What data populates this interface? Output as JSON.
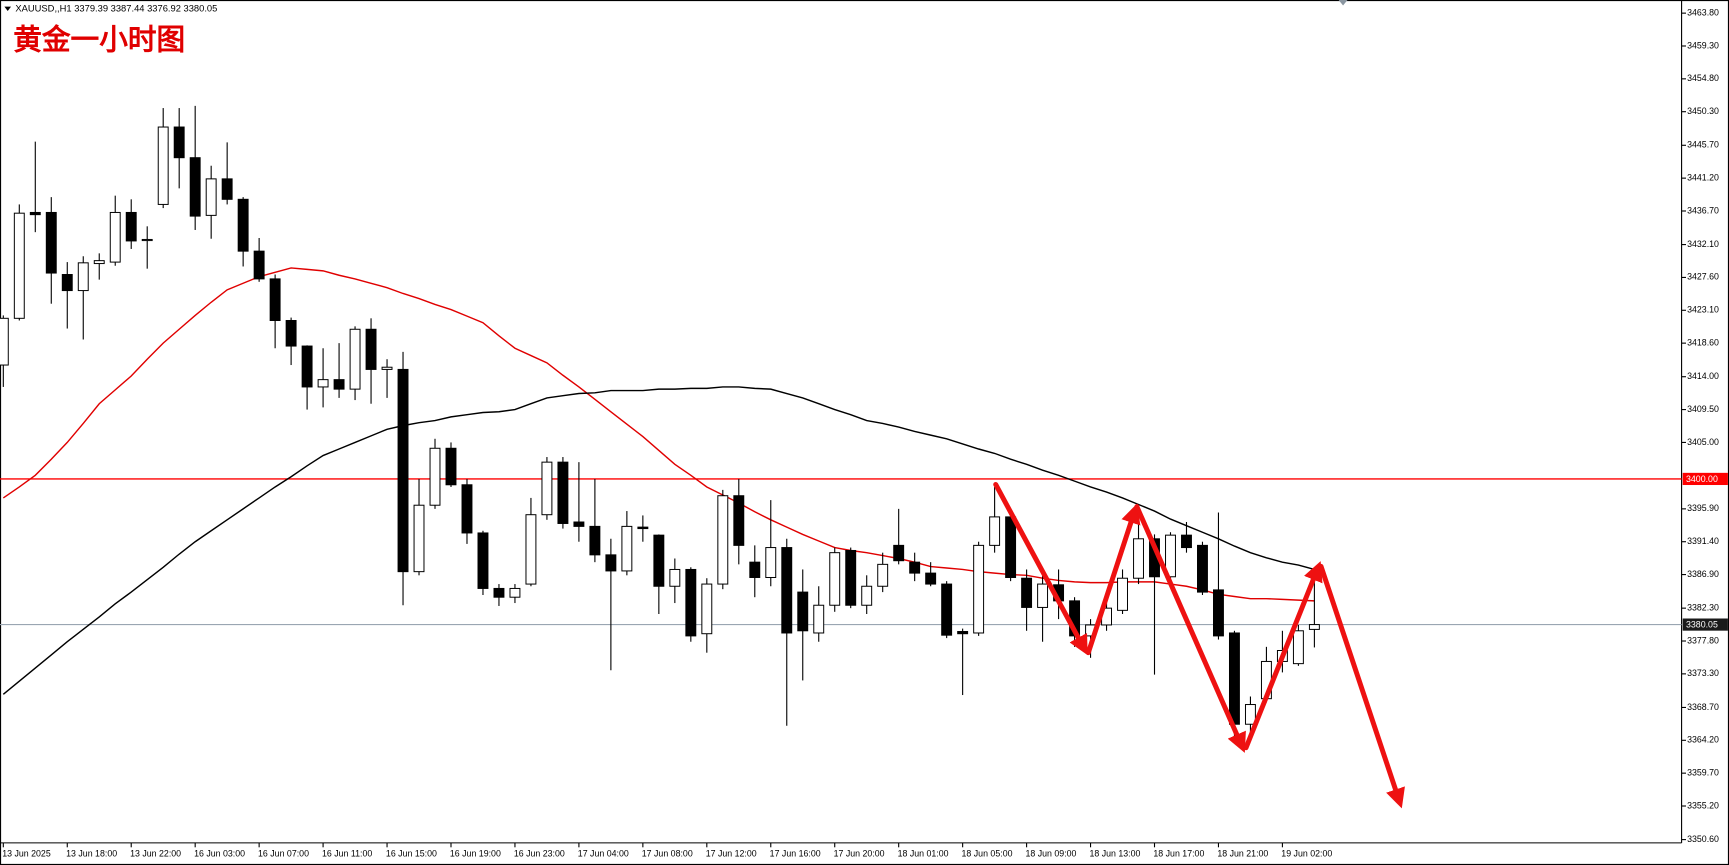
{
  "chart_data": {
    "type": "candlestick",
    "title": "黄金一小时图",
    "header": "XAUUSD,,H1  3379.39 3387.44 3376.92 3380.05",
    "categories": [
      "13 Jun 2025",
      null,
      null,
      null,
      "13 Jun 18:00",
      null,
      null,
      null,
      "13 Jun 22:00",
      null,
      null,
      null,
      "16 Jun 03:00",
      null,
      null,
      null,
      "16 Jun 07:00",
      null,
      null,
      null,
      "16 Jun 11:00",
      null,
      null,
      null,
      "16 Jun 15:00",
      null,
      null,
      null,
      "16 Jun 19:00",
      null,
      null,
      null,
      "16 Jun 23:00",
      null,
      null,
      null,
      "17 Jun 04:00",
      null,
      null,
      null,
      "17 Jun 08:00",
      null,
      null,
      null,
      "17 Jun 12:00",
      null,
      null,
      null,
      "17 Jun 16:00",
      null,
      null,
      null,
      "17 Jun 20:00",
      null,
      null,
      null,
      "18 Jun 01:00",
      null,
      null,
      null,
      "18 Jun 05:00",
      null,
      null,
      null,
      "18 Jun 09:00",
      null,
      null,
      null,
      "18 Jun 13:00",
      null,
      null,
      null,
      "18 Jun 17:00",
      null,
      null,
      null,
      "18 Jun 21:00",
      null,
      null,
      null,
      "19 Jun 02:00",
      null,
      null
    ],
    "open": [
      3415.6,
      3422.0,
      3436.5,
      3436.5,
      3428.0,
      3425.8,
      3429.5,
      3429.7,
      3436.5,
      3432.7,
      3437.6,
      3448.2,
      3444.0,
      3436.1,
      3441.1,
      3438.3,
      3431.2,
      3427.4,
      3421.7,
      3418.2,
      3412.6,
      3413.6,
      3412.3,
      3420.5,
      3415.0,
      3415.0,
      3387.3,
      3396.4,
      3404.2,
      3399.2,
      3392.6,
      3385.0,
      3383.8,
      3385.6,
      3395.1,
      3402.3,
      3394.1,
      3393.5,
      3389.6,
      3387.4,
      3393.4,
      3392.3,
      3385.3,
      3387.6,
      3378.8,
      3385.6,
      3397.7,
      3388.6,
      3386.5,
      3390.6,
      3384.5,
      3378.9,
      3382.7,
      3390.2,
      3382.7,
      3385.3,
      3390.9,
      3388.6,
      3387.1,
      3385.6,
      3379.1,
      3378.9,
      3390.9,
      3394.8,
      3386.4,
      3382.4,
      3385.5,
      3383.3,
      3378.5,
      3380.0,
      3382.0,
      3386.4,
      3391.8,
      3386.6,
      3392.3,
      3390.9,
      3384.8,
      3378.9,
      3366.4,
      3369.9,
      3375.0,
      3374.7,
      3379.39
    ],
    "high": [
      3422.4,
      3437.6,
      3446.2,
      3438.6,
      3429.7,
      3430.5,
      3430.9,
      3438.8,
      3438.3,
      3434.6,
      3450.8,
      3450.8,
      3451.1,
      3442.9,
      3446.1,
      3438.6,
      3433.0,
      3428.0,
      3422.1,
      3418.3,
      3417.9,
      3418.6,
      3420.9,
      3422.0,
      3416.4,
      3417.4,
      3400.0,
      3405.5,
      3405.0,
      3400.0,
      3392.9,
      3385.6,
      3385.6,
      3397.4,
      3403.0,
      3403.0,
      3402.3,
      3400.0,
      3391.8,
      3395.6,
      3395.0,
      3392.4,
      3389.1,
      3387.9,
      3386.4,
      3398.5,
      3400.0,
      3390.9,
      3397.1,
      3391.8,
      3387.6,
      3385.3,
      3390.6,
      3390.6,
      3386.8,
      3389.9,
      3395.9,
      3389.9,
      3388.6,
      3386.0,
      3379.5,
      3391.4,
      3398.9,
      3395.4,
      3387.6,
      3386.8,
      3387.6,
      3383.8,
      3380.8,
      3383.0,
      3387.6,
      3395.1,
      3392.4,
      3392.7,
      3394.1,
      3391.4,
      3395.4,
      3379.2,
      3370.2,
      3377.0,
      3379.2,
      3380.0,
      3387.44
    ],
    "low": [
      3412.6,
      3421.7,
      3433.8,
      3424.0,
      3420.6,
      3419.1,
      3427.3,
      3429.2,
      3431.5,
      3428.8,
      3437.1,
      3439.8,
      3434.1,
      3432.9,
      3437.6,
      3429.1,
      3427.0,
      3417.9,
      3415.6,
      3409.5,
      3409.8,
      3411.1,
      3410.8,
      3410.3,
      3411.1,
      3382.7,
      3386.8,
      3395.9,
      3398.9,
      3391.1,
      3384.1,
      3382.6,
      3383.0,
      3385.3,
      3394.4,
      3393.2,
      3391.4,
      3388.6,
      3373.8,
      3386.8,
      3391.4,
      3381.5,
      3383.0,
      3377.7,
      3376.2,
      3384.9,
      3388.3,
      3383.8,
      3385.3,
      3366.2,
      3372.4,
      3377.7,
      3381.8,
      3382.3,
      3381.5,
      3384.5,
      3388.3,
      3386.0,
      3385.3,
      3378.2,
      3370.4,
      3378.5,
      3389.9,
      3386.0,
      3379.2,
      3377.7,
      3380.8,
      3377.0,
      3375.5,
      3379.2,
      3381.5,
      3385.6,
      3373.2,
      3386.0,
      3389.9,
      3384.1,
      3378.0,
      3364.1,
      3364.4,
      3369.4,
      3373.5,
      3374.4,
      3376.92
    ],
    "close": [
      3422.0,
      3436.4,
      3436.2,
      3428.2,
      3425.8,
      3429.6,
      3429.9,
      3436.5,
      3432.6,
      3432.8,
      3448.2,
      3444.0,
      3436.0,
      3441.1,
      3438.3,
      3431.2,
      3427.4,
      3421.7,
      3418.2,
      3412.6,
      3413.6,
      3412.3,
      3420.5,
      3415.0,
      3415.3,
      3387.3,
      3396.4,
      3404.2,
      3399.2,
      3392.6,
      3385.0,
      3383.8,
      3385.0,
      3395.1,
      3402.3,
      3393.9,
      3393.5,
      3389.6,
      3387.4,
      3393.5,
      3393.2,
      3385.3,
      3387.6,
      3378.5,
      3385.6,
      3397.7,
      3390.9,
      3386.5,
      3390.6,
      3378.9,
      3379.2,
      3382.7,
      3389.9,
      3382.7,
      3385.3,
      3388.3,
      3388.8,
      3387.1,
      3385.6,
      3378.6,
      3378.8,
      3390.9,
      3394.8,
      3386.5,
      3382.4,
      3385.6,
      3383.3,
      3378.5,
      3380.0,
      3382.3,
      3386.4,
      3391.8,
      3386.6,
      3392.3,
      3390.6,
      3384.5,
      3378.5,
      3366.4,
      3369.1,
      3375.0,
      3376.5,
      3379.2,
      3380.05
    ],
    "up_color": "#ffffff",
    "down_color": "#000000",
    "ma": [
      {
        "color": "#e00000",
        "values": [
          3397.4,
          3398.9,
          3400.5,
          3402.7,
          3405.0,
          3407.6,
          3410.3,
          3412.2,
          3414.1,
          3416.4,
          3418.6,
          3420.5,
          3422.4,
          3424.2,
          3425.9,
          3426.8,
          3427.7,
          3428.3,
          3428.9,
          3428.7,
          3428.5,
          3427.9,
          3427.4,
          3426.8,
          3426.2,
          3425.4,
          3424.7,
          3423.9,
          3423.2,
          3422.3,
          3421.4,
          3419.6,
          3417.9,
          3416.9,
          3415.9,
          3414.2,
          3412.6,
          3410.9,
          3409.2,
          3407.5,
          3405.8,
          3403.9,
          3402.0,
          3400.5,
          3398.9,
          3397.8,
          3396.7,
          3395.5,
          3394.4,
          3393.4,
          3392.4,
          3391.5,
          3390.6,
          3390.2,
          3389.9,
          3389.5,
          3389.1,
          3388.6,
          3388.0,
          3387.8,
          3387.6,
          3387.3,
          3387.1,
          3386.9,
          3386.8,
          3386.4,
          3386.1,
          3385.9,
          3385.8,
          3385.8,
          3385.9,
          3385.9,
          3385.9,
          3385.6,
          3385.3,
          3384.8,
          3384.2,
          3383.9,
          3383.6,
          3383.6,
          3383.5,
          3383.4,
          3383.3
        ]
      },
      {
        "color": "#000000",
        "values": [
          3370.5,
          3372.3,
          3374.1,
          3375.9,
          3377.7,
          3379.4,
          3381.1,
          3382.9,
          3384.5,
          3386.2,
          3387.9,
          3389.7,
          3391.4,
          3392.9,
          3394.4,
          3395.9,
          3397.4,
          3398.9,
          3400.3,
          3401.8,
          3403.2,
          3404.1,
          3405.0,
          3405.9,
          3406.8,
          3407.3,
          3407.7,
          3408.0,
          3408.5,
          3408.8,
          3409.1,
          3409.2,
          3409.5,
          3410.3,
          3411.1,
          3411.4,
          3411.7,
          3411.8,
          3412.1,
          3412.1,
          3412.1,
          3412.3,
          3412.3,
          3412.4,
          3412.4,
          3412.6,
          3412.6,
          3412.4,
          3412.3,
          3411.7,
          3411.1,
          3410.3,
          3409.5,
          3408.8,
          3408.0,
          3407.6,
          3407.1,
          3406.5,
          3406.0,
          3405.5,
          3404.8,
          3404.1,
          3403.5,
          3402.7,
          3402.0,
          3401.2,
          3400.5,
          3399.7,
          3398.9,
          3398.2,
          3397.4,
          3396.5,
          3395.6,
          3394.5,
          3393.6,
          3392.7,
          3391.8,
          3390.8,
          3389.9,
          3389.2,
          3388.6,
          3388.2,
          3387.6
        ]
      }
    ],
    "hlines": [
      {
        "value": 3400,
        "label": "3400.00",
        "color": "#ff0000",
        "box_color": "#ff0000"
      },
      {
        "value": 3380.05,
        "label": "3380.05",
        "color": "#9aa6b2",
        "box_color": "#1a1a1a"
      }
    ],
    "ylim": [
      3350.15,
      3465.6
    ],
    "yticks": [
      {
        "value": 3350.6,
        "label": "3350.60"
      },
      {
        "value": 3355.2,
        "label": "3355.20"
      },
      {
        "value": 3359.7,
        "label": "3359.70"
      },
      {
        "value": 3364.2,
        "label": "3364.20"
      },
      {
        "value": 3368.7,
        "label": "3368.70"
      },
      {
        "value": 3373.3,
        "label": "3373.30"
      },
      {
        "value": 3377.8,
        "label": "3377.80"
      },
      {
        "value": 3382.3,
        "label": "3382.30"
      },
      {
        "value": 3386.9,
        "label": "3386.90"
      },
      {
        "value": 3391.4,
        "label": "3391.40"
      },
      {
        "value": 3395.9,
        "label": "3395.90"
      },
      {
        "value": 3405,
        "label": "3405.00"
      },
      {
        "value": 3409.5,
        "label": "3409.50"
      },
      {
        "value": 3414,
        "label": "3414.00"
      },
      {
        "value": 3418.6,
        "label": "3418.60"
      },
      {
        "value": 3423.1,
        "label": "3423.10"
      },
      {
        "value": 3427.6,
        "label": "3427.60"
      },
      {
        "value": 3432.1,
        "label": "3432.10"
      },
      {
        "value": 3436.7,
        "label": "3436.70"
      },
      {
        "value": 3441.2,
        "label": "3441.20"
      },
      {
        "value": 3445.7,
        "label": "3445.70"
      },
      {
        "value": 3450.3,
        "label": "3450.30"
      },
      {
        "value": 3454.8,
        "label": "3454.80"
      },
      {
        "value": 3459.3,
        "label": "3459.30"
      },
      {
        "value": 3463.8,
        "label": "3463.80"
      }
    ]
  }
}
